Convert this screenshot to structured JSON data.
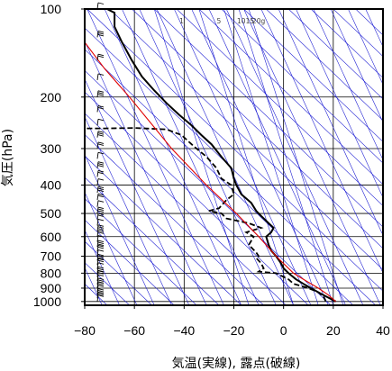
{
  "chart_data": {
    "type": "line",
    "title": "",
    "xlabel": "気温(実線), 露点(破線)",
    "ylabel": "気圧(hPa)",
    "xlim": [
      -80,
      40
    ],
    "ylim": [
      1030,
      100
    ],
    "y_scale": "log",
    "x_ticks": [
      -80,
      -60,
      -40,
      -20,
      0,
      20,
      40
    ],
    "x_tick_labels": [
      "−80",
      "−60",
      "−40",
      "−20",
      "0",
      "20",
      "40"
    ],
    "y_ticks": [
      100,
      200,
      300,
      400,
      500,
      600,
      700,
      800,
      900,
      1000
    ],
    "y_tick_labels": [
      "100",
      "200",
      "300",
      "400",
      "500",
      "600",
      "700",
      "800",
      "900",
      "1000"
    ],
    "mixing_ratio_labels": [
      "1",
      "5",
      "10",
      "15",
      "20g"
    ],
    "mixing_ratios_g_per_kg": [
      1,
      5,
      10,
      15,
      20
    ],
    "grid": true,
    "colors": {
      "temperature": "#000000",
      "dewpoint": "#000000",
      "parcel": "#e00000",
      "adiabats": "#1010d0",
      "grid": "#000000"
    },
    "series": [
      {
        "line": "solid",
        "points": [
          [
            21,
            1000
          ],
          [
            18,
            970
          ],
          [
            15,
            940
          ],
          [
            11,
            900
          ],
          [
            8,
            870
          ],
          [
            5,
            840
          ],
          [
            2,
            800
          ],
          [
            0,
            770
          ],
          [
            -1,
            740
          ],
          [
            -3,
            700
          ],
          [
            -5,
            670
          ],
          [
            -6,
            640
          ],
          [
            -7,
            600
          ],
          [
            -5,
            580
          ],
          [
            -4,
            560
          ],
          [
            -6,
            540
          ],
          [
            -9,
            510
          ],
          [
            -11,
            490
          ],
          [
            -13,
            460
          ],
          [
            -17,
            430
          ],
          [
            -19,
            400
          ],
          [
            -20,
            380
          ],
          [
            -21,
            350
          ],
          [
            -25,
            320
          ],
          [
            -29,
            290
          ],
          [
            -33,
            270
          ],
          [
            -37,
            250
          ],
          [
            -42,
            230
          ],
          [
            -47,
            210
          ],
          [
            -52,
            190
          ],
          [
            -57,
            170
          ],
          [
            -61,
            150
          ],
          [
            -65,
            130
          ],
          [
            -68,
            115
          ],
          [
            -68,
            103
          ],
          [
            -71,
            100
          ]
        ]
      },
      {
        "line": "dashed",
        "points": [
          [
            17,
            1000
          ],
          [
            16,
            960
          ],
          [
            14,
            930
          ],
          [
            10,
            900
          ],
          [
            4,
            870
          ],
          [
            2,
            840
          ],
          [
            -3,
            800
          ],
          [
            -10,
            790
          ],
          [
            -8,
            770
          ],
          [
            -9,
            740
          ],
          [
            -11,
            710
          ],
          [
            -10,
            700
          ],
          [
            -11,
            680
          ],
          [
            -14,
            640
          ],
          [
            -12,
            600
          ],
          [
            -15,
            580
          ],
          [
            -9,
            560
          ],
          [
            -14,
            540
          ],
          [
            -23,
            520
          ],
          [
            -25,
            500
          ],
          [
            -30,
            490
          ],
          [
            -26,
            480
          ],
          [
            -23,
            450
          ],
          [
            -20,
            430
          ],
          [
            -21,
            400
          ],
          [
            -25,
            380
          ],
          [
            -27,
            350
          ],
          [
            -31,
            320
          ],
          [
            -35,
            300
          ],
          [
            -37,
            290
          ],
          [
            -41,
            270
          ],
          [
            -47,
            258
          ],
          [
            -60,
            255
          ],
          [
            -72,
            256
          ],
          [
            -80,
            256
          ]
        ]
      },
      {
        "line": "parcel",
        "points": [
          [
            21,
            1000
          ],
          [
            18,
            950
          ],
          [
            14,
            900
          ],
          [
            9,
            850
          ],
          [
            4,
            800
          ],
          [
            -3,
            700
          ],
          [
            -10,
            600
          ],
          [
            -19,
            500
          ],
          [
            -31,
            400
          ],
          [
            -45,
            300
          ],
          [
            -62,
            200
          ],
          [
            -72,
            160
          ],
          [
            -80,
            130
          ]
        ]
      }
    ],
    "wind_barbs_pressures_hPa": [
      1000,
      975,
      950,
      925,
      900,
      875,
      850,
      825,
      800,
      775,
      750,
      725,
      700,
      675,
      650,
      625,
      600,
      575,
      550,
      525,
      500,
      475,
      450,
      425,
      400,
      375,
      350,
      325,
      300,
      275,
      250,
      225,
      200,
      175,
      150,
      125,
      100
    ]
  }
}
